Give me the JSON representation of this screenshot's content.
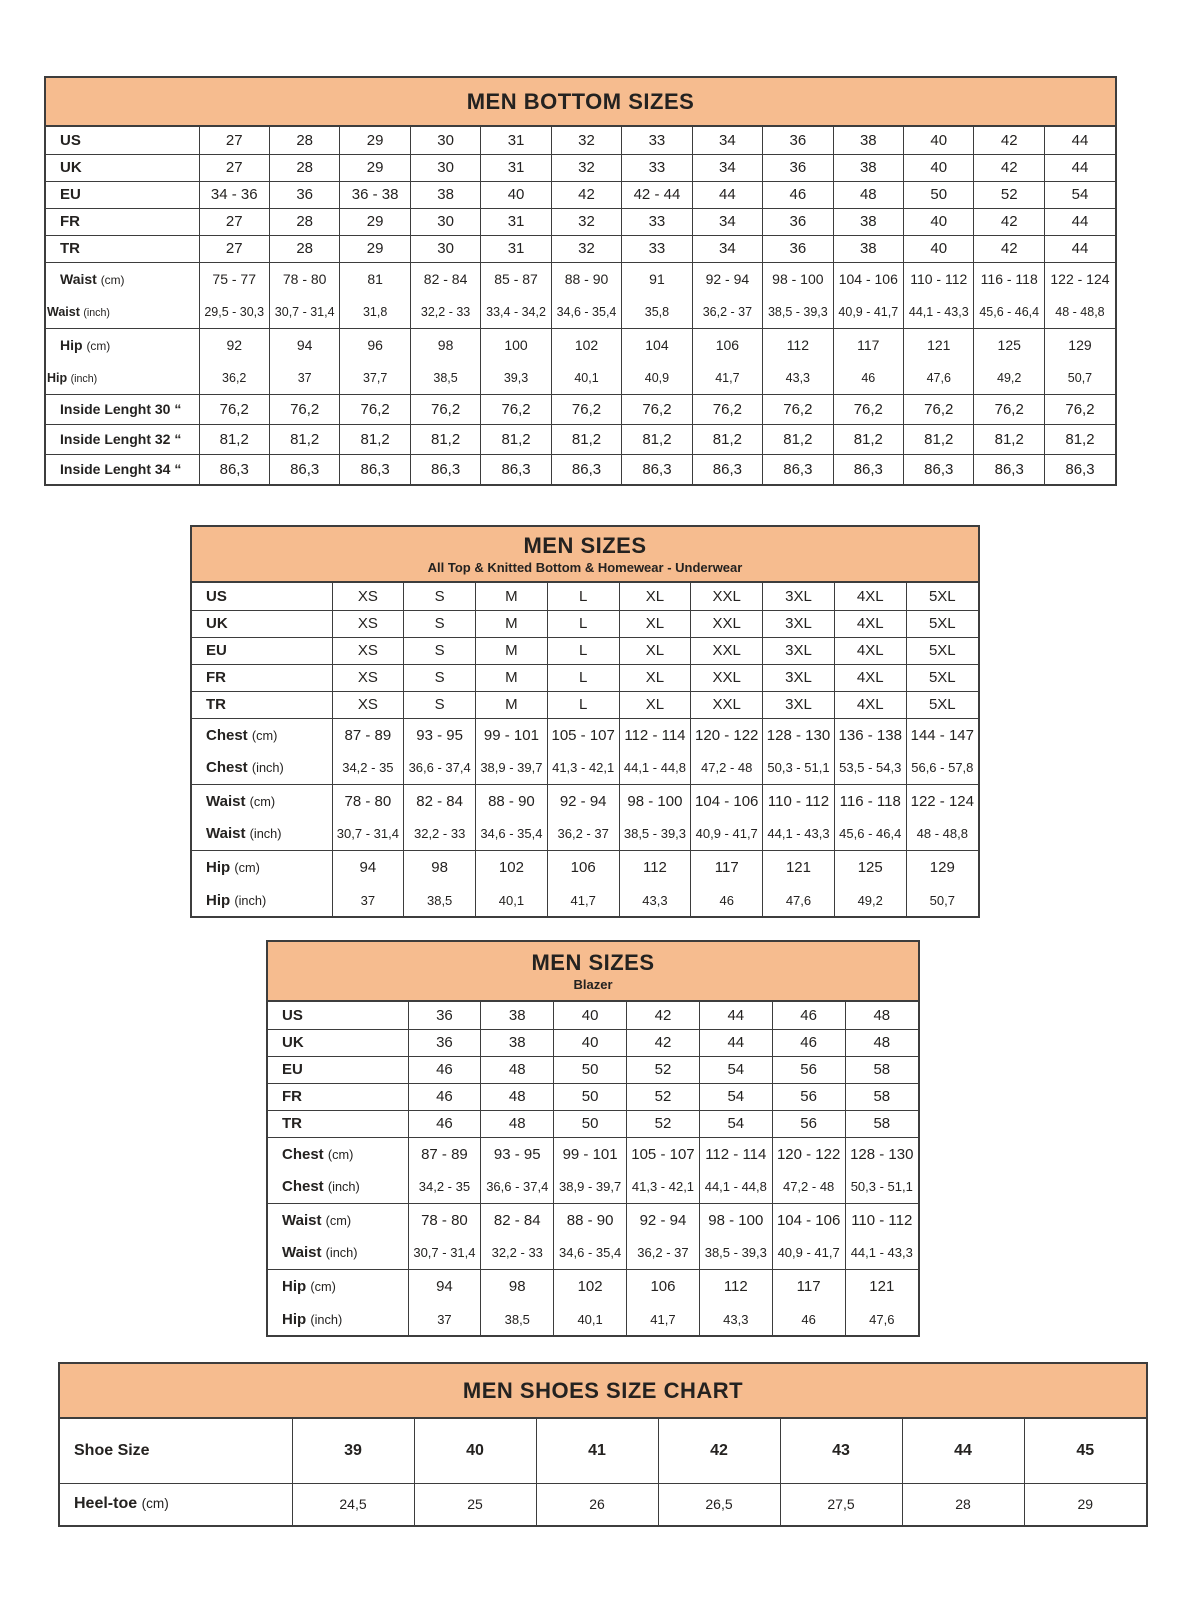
{
  "colors": {
    "accent": "#F6BC8F",
    "line": "#3d3d3d",
    "text": "#242220"
  },
  "tables": [
    {
      "title": "MEN BOTTOM SIZES",
      "subtitle": "",
      "groups": [
        {
          "rows": [
            {
              "label": "US",
              "unit": "",
              "style": "size",
              "values": [
                "27",
                "28",
                "29",
                "30",
                "31",
                "32",
                "33",
                "34",
                "36",
                "38",
                "40",
                "42",
                "44"
              ]
            }
          ]
        },
        {
          "rows": [
            {
              "label": "UK",
              "unit": "",
              "style": "size",
              "values": [
                "27",
                "28",
                "29",
                "30",
                "31",
                "32",
                "33",
                "34",
                "36",
                "38",
                "40",
                "42",
                "44"
              ]
            }
          ]
        },
        {
          "rows": [
            {
              "label": "EU",
              "unit": "",
              "style": "size",
              "values": [
                "34 - 36",
                "36",
                "36 - 38",
                "38",
                "40",
                "42",
                "42 - 44",
                "44",
                "46",
                "48",
                "50",
                "52",
                "54"
              ]
            }
          ]
        },
        {
          "rows": [
            {
              "label": "FR",
              "unit": "",
              "style": "size",
              "values": [
                "27",
                "28",
                "29",
                "30",
                "31",
                "32",
                "33",
                "34",
                "36",
                "38",
                "40",
                "42",
                "44"
              ]
            }
          ]
        },
        {
          "rows": [
            {
              "label": "TR",
              "unit": "",
              "style": "size",
              "values": [
                "27",
                "28",
                "29",
                "30",
                "31",
                "32",
                "33",
                "34",
                "36",
                "38",
                "40",
                "42",
                "44"
              ]
            }
          ]
        },
        {
          "rows": [
            {
              "label": "Waist",
              "unit": "(cm)",
              "style": "cm",
              "values": [
                "75 - 77",
                "78 - 80",
                "81",
                "82 - 84",
                "85 - 87",
                "88 - 90",
                "91",
                "92 - 94",
                "98 - 100",
                "104 - 106",
                "110 - 112",
                "116 - 118",
                "122 - 124"
              ]
            },
            {
              "label": "Waist",
              "unit": "(inch)",
              "style": "inch",
              "values": [
                "29,5 - 30,3",
                "30,7 - 31,4",
                "31,8",
                "32,2 - 33",
                "33,4 - 34,2",
                "34,6 - 35,4",
                "35,8",
                "36,2 - 37",
                "38,5 - 39,3",
                "40,9 - 41,7",
                "44,1 - 43,3",
                "45,6 - 46,4",
                "48 - 48,8"
              ]
            }
          ]
        },
        {
          "rows": [
            {
              "label": "Hip",
              "unit": "(cm)",
              "style": "cm",
              "values": [
                "92",
                "94",
                "96",
                "98",
                "100",
                "102",
                "104",
                "106",
                "112",
                "117",
                "121",
                "125",
                "129"
              ]
            },
            {
              "label": "Hip",
              "unit": "(inch)",
              "style": "inch",
              "values": [
                "36,2",
                "37",
                "37,7",
                "38,5",
                "39,3",
                "40,1",
                "40,9",
                "41,7",
                "43,3",
                "46",
                "47,6",
                "49,2",
                "50,7"
              ]
            }
          ]
        },
        {
          "rows": [
            {
              "label": "Inside Lenght 30 “",
              "unit": "",
              "style": "inside",
              "values": [
                "76,2",
                "76,2",
                "76,2",
                "76,2",
                "76,2",
                "76,2",
                "76,2",
                "76,2",
                "76,2",
                "76,2",
                "76,2",
                "76,2",
                "76,2"
              ]
            }
          ]
        },
        {
          "rows": [
            {
              "label": "Inside Lenght 32 “",
              "unit": "",
              "style": "inside",
              "values": [
                "81,2",
                "81,2",
                "81,2",
                "81,2",
                "81,2",
                "81,2",
                "81,2",
                "81,2",
                "81,2",
                "81,2",
                "81,2",
                "81,2",
                "81,2"
              ]
            }
          ]
        },
        {
          "rows": [
            {
              "label": "Inside Lenght 34 “",
              "unit": "",
              "style": "inside",
              "values": [
                "86,3",
                "86,3",
                "86,3",
                "86,3",
                "86,3",
                "86,3",
                "86,3",
                "86,3",
                "86,3",
                "86,3",
                "86,3",
                "86,3",
                "86,3"
              ]
            }
          ]
        }
      ]
    },
    {
      "title": "MEN SIZES",
      "subtitle": "All Top & Knitted Bottom & Homewear - Underwear",
      "groups": [
        {
          "rows": [
            {
              "label": "US",
              "unit": "",
              "style": "size",
              "values": [
                "XS",
                "S",
                "M",
                "L",
                "XL",
                "XXL",
                "3XL",
                "4XL",
                "5XL"
              ]
            }
          ]
        },
        {
          "rows": [
            {
              "label": "UK",
              "unit": "",
              "style": "size",
              "values": [
                "XS",
                "S",
                "M",
                "L",
                "XL",
                "XXL",
                "3XL",
                "4XL",
                "5XL"
              ]
            }
          ]
        },
        {
          "rows": [
            {
              "label": "EU",
              "unit": "",
              "style": "size",
              "values": [
                "XS",
                "S",
                "M",
                "L",
                "XL",
                "XXL",
                "3XL",
                "4XL",
                "5XL"
              ]
            }
          ]
        },
        {
          "rows": [
            {
              "label": "FR",
              "unit": "",
              "style": "size",
              "values": [
                "XS",
                "S",
                "M",
                "L",
                "XL",
                "XXL",
                "3XL",
                "4XL",
                "5XL"
              ]
            }
          ]
        },
        {
          "rows": [
            {
              "label": "TR",
              "unit": "",
              "style": "size",
              "values": [
                "XS",
                "S",
                "M",
                "L",
                "XL",
                "XXL",
                "3XL",
                "4XL",
                "5XL"
              ]
            }
          ]
        },
        {
          "rows": [
            {
              "label": "Chest",
              "unit": "(cm)",
              "style": "cm",
              "values": [
                "87 - 89",
                "93 - 95",
                "99 - 101",
                "105 - 107",
                "112 - 114",
                "120 - 122",
                "128 - 130",
                "136 - 138",
                "144 - 147"
              ]
            },
            {
              "label": "Chest",
              "unit": "(inch)",
              "style": "inch",
              "values": [
                "34,2 - 35",
                "36,6 - 37,4",
                "38,9 - 39,7",
                "41,3 - 42,1",
                "44,1 - 44,8",
                "47,2 - 48",
                "50,3 - 51,1",
                "53,5 - 54,3",
                "56,6 - 57,8"
              ]
            }
          ]
        },
        {
          "rows": [
            {
              "label": "Waist",
              "unit": "(cm)",
              "style": "cm",
              "values": [
                "78 - 80",
                "82 - 84",
                "88 - 90",
                "92 - 94",
                "98 - 100",
                "104 - 106",
                "110 - 112",
                "116 - 118",
                "122 - 124"
              ]
            },
            {
              "label": "Waist",
              "unit": "(inch)",
              "style": "inch",
              "values": [
                "30,7 - 31,4",
                "32,2 - 33",
                "34,6 - 35,4",
                "36,2 - 37",
                "38,5 - 39,3",
                "40,9 - 41,7",
                "44,1 - 43,3",
                "45,6 - 46,4",
                "48 - 48,8"
              ]
            }
          ]
        },
        {
          "rows": [
            {
              "label": "Hip",
              "unit": "(cm)",
              "style": "cm",
              "values": [
                "94",
                "98",
                "102",
                "106",
                "112",
                "117",
                "121",
                "125",
                "129"
              ]
            },
            {
              "label": "Hip",
              "unit": "(inch)",
              "style": "inch",
              "values": [
                "37",
                "38,5",
                "40,1",
                "41,7",
                "43,3",
                "46",
                "47,6",
                "49,2",
                "50,7"
              ]
            }
          ]
        }
      ]
    },
    {
      "title": "MEN SIZES",
      "subtitle": "Blazer",
      "groups": [
        {
          "rows": [
            {
              "label": "US",
              "unit": "",
              "style": "size",
              "values": [
                "36",
                "38",
                "40",
                "42",
                "44",
                "46",
                "48"
              ]
            }
          ]
        },
        {
          "rows": [
            {
              "label": "UK",
              "unit": "",
              "style": "size",
              "values": [
                "36",
                "38",
                "40",
                "42",
                "44",
                "46",
                "48"
              ]
            }
          ]
        },
        {
          "rows": [
            {
              "label": "EU",
              "unit": "",
              "style": "size",
              "values": [
                "46",
                "48",
                "50",
                "52",
                "54",
                "56",
                "58"
              ]
            }
          ]
        },
        {
          "rows": [
            {
              "label": "FR",
              "unit": "",
              "style": "size",
              "values": [
                "46",
                "48",
                "50",
                "52",
                "54",
                "56",
                "58"
              ]
            }
          ]
        },
        {
          "rows": [
            {
              "label": "TR",
              "unit": "",
              "style": "size",
              "values": [
                "46",
                "48",
                "50",
                "52",
                "54",
                "56",
                "58"
              ]
            }
          ]
        },
        {
          "rows": [
            {
              "label": "Chest",
              "unit": "(cm)",
              "style": "cm",
              "values": [
                "87 - 89",
                "93 - 95",
                "99 - 101",
                "105 - 107",
                "112 - 114",
                "120 - 122",
                "128 - 130"
              ]
            },
            {
              "label": "Chest",
              "unit": "(inch)",
              "style": "inch",
              "values": [
                "34,2 - 35",
                "36,6 - 37,4",
                "38,9 - 39,7",
                "41,3 - 42,1",
                "44,1 - 44,8",
                "47,2 - 48",
                "50,3 - 51,1"
              ]
            }
          ]
        },
        {
          "rows": [
            {
              "label": "Waist",
              "unit": "(cm)",
              "style": "cm",
              "values": [
                "78 - 80",
                "82 - 84",
                "88 - 90",
                "92 - 94",
                "98 - 100",
                "104 - 106",
                "110 - 112"
              ]
            },
            {
              "label": "Waist",
              "unit": "(inch)",
              "style": "inch",
              "values": [
                "30,7 - 31,4",
                "32,2 - 33",
                "34,6 - 35,4",
                "36,2 - 37",
                "38,5 - 39,3",
                "40,9 - 41,7",
                "44,1 - 43,3"
              ]
            }
          ]
        },
        {
          "rows": [
            {
              "label": "Hip",
              "unit": "(cm)",
              "style": "cm",
              "values": [
                "94",
                "98",
                "102",
                "106",
                "112",
                "117",
                "121"
              ]
            },
            {
              "label": "Hip",
              "unit": "(inch)",
              "style": "inch",
              "values": [
                "37",
                "38,5",
                "40,1",
                "41,7",
                "43,3",
                "46",
                "47,6"
              ]
            }
          ]
        }
      ]
    },
    {
      "title": "MEN SHOES SIZE CHART",
      "subtitle": "",
      "groups": [
        {
          "rows": [
            {
              "label": "Shoe Size",
              "unit": "",
              "style": "shoe",
              "values": [
                "39",
                "40",
                "41",
                "42",
                "43",
                "44",
                "45"
              ]
            }
          ]
        },
        {
          "rows": [
            {
              "label": "Heel-toe",
              "unit": "(cm)",
              "style": "heel",
              "values": [
                "24,5",
                "25",
                "26",
                "26,5",
                "27,5",
                "28",
                "29"
              ]
            }
          ]
        }
      ]
    }
  ]
}
